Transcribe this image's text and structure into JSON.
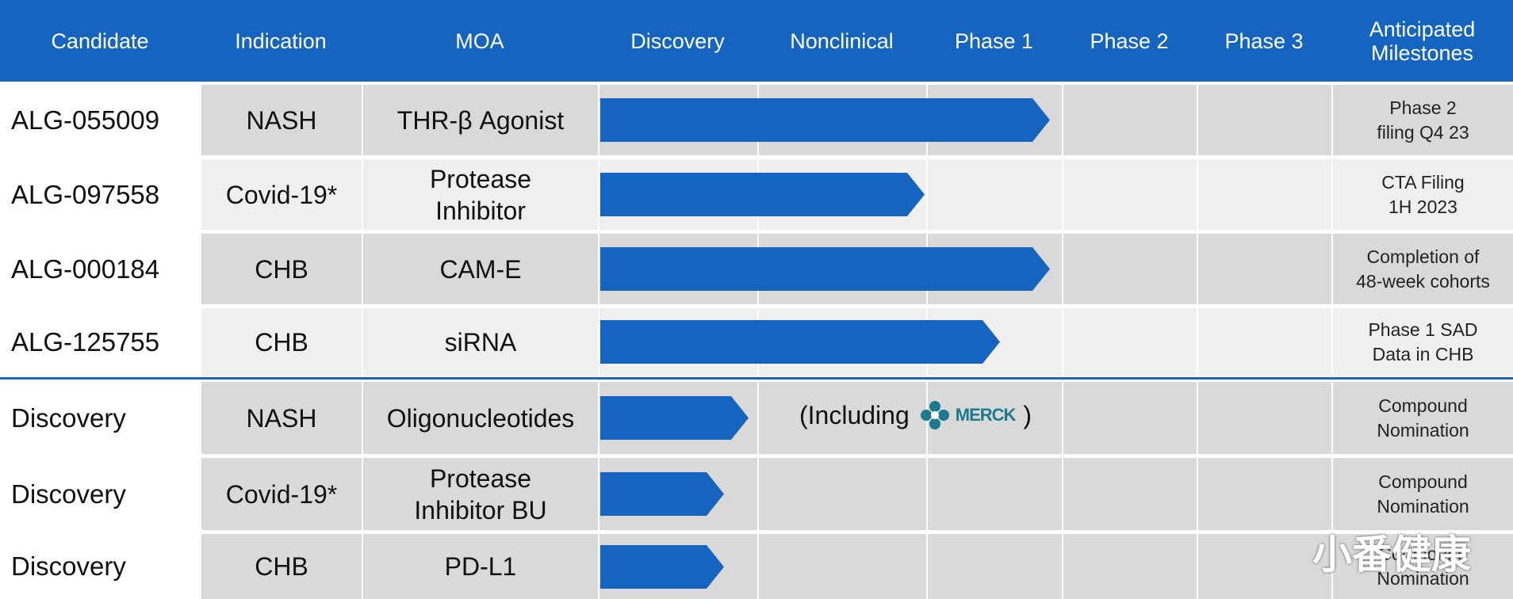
{
  "header": {
    "columns": [
      "Candidate",
      "Indication",
      "MOA",
      "Discovery",
      "Nonclinical",
      "Phase 1",
      "Phase 2",
      "Phase 3",
      "Anticipated\nMilestones"
    ]
  },
  "rows": [
    {
      "candidate": "ALG-055009",
      "indication": "NASH",
      "moa": "THR-β Agonist",
      "milestone": "Phase 2\nfiling Q4 23"
    },
    {
      "candidate": "ALG-097558",
      "indication": "Covid-19*",
      "moa": "Protease\nInhibitor",
      "milestone": "CTA Filing\n1H 2023"
    },
    {
      "candidate": "ALG-000184",
      "indication": "CHB",
      "moa": "CAM-E",
      "milestone": "Completion of\n48-week cohorts"
    },
    {
      "candidate": "ALG-125755",
      "indication": "CHB",
      "moa": "siRNA",
      "milestone": "Phase 1 SAD\nData in CHB"
    },
    {
      "candidate": "Discovery",
      "indication": "NASH",
      "moa": "Oligonucleotides",
      "milestone": "Compound\nNomination"
    },
    {
      "candidate": "Discovery",
      "indication": "Covid-19*",
      "moa": "Protease\nInhibitor  BU",
      "milestone": "Compound\nNomination"
    },
    {
      "candidate": "Discovery",
      "indication": "CHB",
      "moa": "PD-L1",
      "milestone": "Compound\nNomination"
    }
  ],
  "annotation": {
    "prefix": "(Including",
    "logo": "MERCK",
    "suffix": ")"
  },
  "watermark": "小番健康"
}
